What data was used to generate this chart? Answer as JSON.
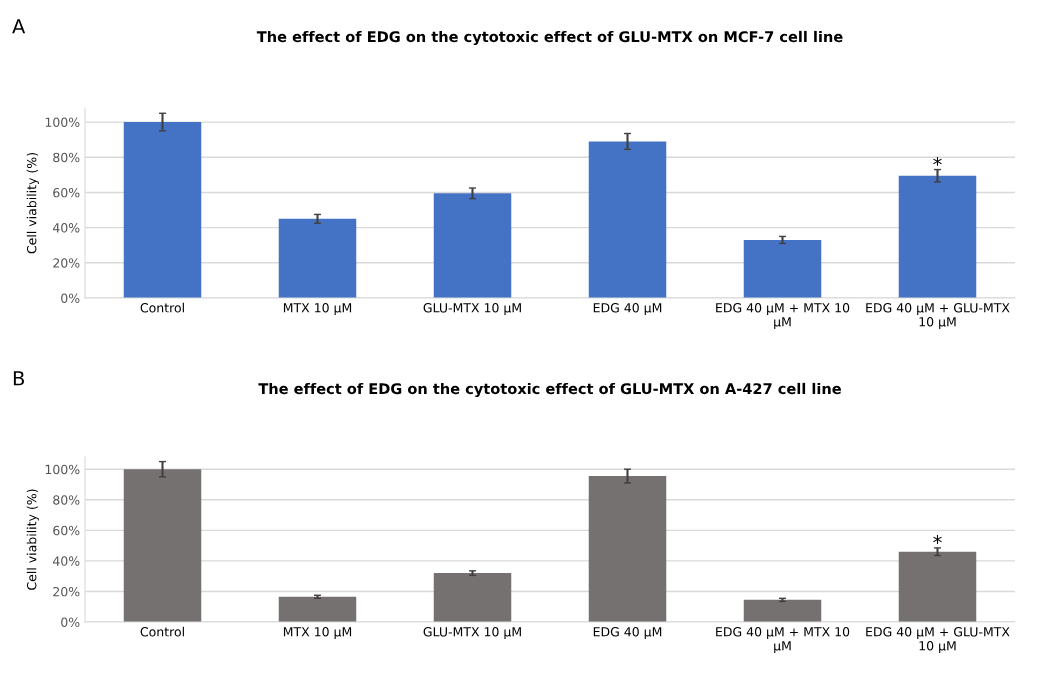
{
  "chart_data": [
    {
      "type": "bar",
      "title": "The effect of EDG on the cytotoxic effect of GLU-MTX on MCF-7 cell line",
      "ylabel": "Cell viability (%)",
      "categories": [
        "Control",
        "MTX 10 µM",
        "GLU-MTX 10 µM",
        "EDG 40 µM",
        "EDG 40 µM + MTX 10 µM",
        "EDG 40 µM + GLU-MTX 10 µM"
      ],
      "series": [
        {
          "color": "#4472c4",
          "values": [
            100,
            45,
            59.5,
            89,
            33,
            69.5
          ],
          "errors": [
            5,
            2.5,
            3,
            4.5,
            2,
            3.5
          ]
        }
      ],
      "ylim": [
        0,
        108
      ],
      "yticks": [
        {
          "value": 0,
          "label": "0%"
        },
        {
          "value": 20,
          "label": "20%"
        },
        {
          "value": 40,
          "label": "40%"
        },
        {
          "value": 60,
          "label": "60%"
        },
        {
          "value": 80,
          "label": "80%"
        },
        {
          "value": 100,
          "label": "100%"
        }
      ],
      "grid": "y",
      "annotations": [
        "A",
        {
          "text": "*",
          "x": "EDG 40 µM + GLU-MTX 10 µM",
          "y": 75
        }
      ]
    },
    {
      "type": "bar",
      "title": "The effect of EDG on the cytotoxic effect of GLU-MTX on A-427 cell line",
      "ylabel": "Cell viability (%)",
      "categories": [
        "Control",
        "MTX 10 µM",
        "GLU-MTX 10 µM",
        "EDG 40 µM",
        "EDG 40 µM + MTX 10 µM",
        "EDG 40 µM + GLU-MTX 10 µM"
      ],
      "series": [
        {
          "color": "#767171",
          "values": [
            100,
            16.5,
            32,
            95.5,
            14.5,
            46
          ],
          "errors": [
            5,
            1,
            1.5,
            4.5,
            1,
            2.5
          ]
        }
      ],
      "ylim": [
        0,
        108
      ],
      "yticks": [
        {
          "value": 0,
          "label": "0%"
        },
        {
          "value": 20,
          "label": "20%"
        },
        {
          "value": 40,
          "label": "40%"
        },
        {
          "value": 60,
          "label": "60%"
        },
        {
          "value": 80,
          "label": "80%"
        },
        {
          "value": 100,
          "label": "100%"
        }
      ],
      "grid": "y",
      "annotations": [
        "B",
        {
          "text": "*",
          "x": "EDG 40 µM + GLU-MTX 10 µM",
          "y": 51
        }
      ]
    }
  ]
}
